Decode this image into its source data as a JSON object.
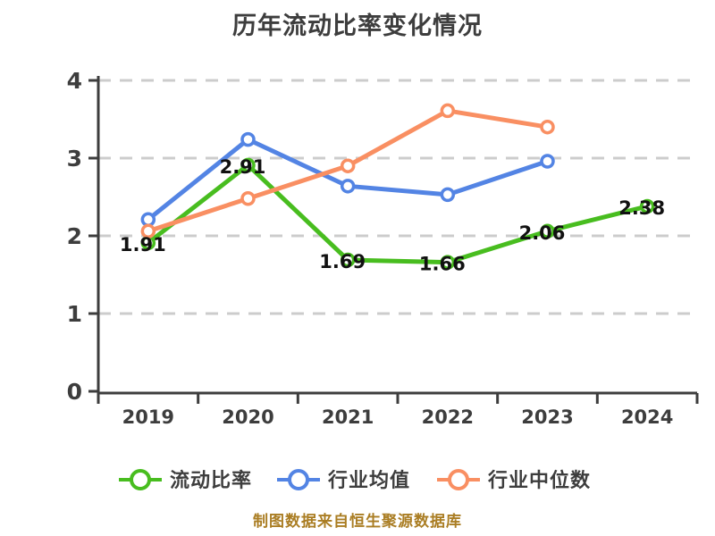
{
  "title": "历年流动比率变化情况",
  "footer": "制图数据来自恒生聚源数据库",
  "colors": {
    "background": "#ffffff",
    "title_text": "#3d3d3d",
    "axis": "#3d3d3d",
    "tick_label": "#3d3d3d",
    "grid": "#cccccc",
    "data_label": "#111111",
    "footer_text": "#aa7d23",
    "marker_fill": "#ffffff",
    "series_current_ratio": "#48bd1f",
    "series_industry_mean": "#5384e4",
    "series_industry_median": "#f98f62"
  },
  "legend": {
    "items": [
      {
        "label": "流动比率",
        "color": "#48bd1f"
      },
      {
        "label": "行业均值",
        "color": "#5384e4"
      },
      {
        "label": "行业中位数",
        "color": "#f98f62"
      }
    ]
  },
  "chart_data": {
    "type": "line",
    "title": "历年流动比率变化情况",
    "source_note": "制图数据来自恒生聚源数据库",
    "categories": [
      "2019",
      "2020",
      "2021",
      "2022",
      "2023",
      "2024"
    ],
    "xlabel": "",
    "ylabel": "",
    "ylim": [
      0,
      4
    ],
    "yticks": [
      0,
      1,
      2,
      3,
      4
    ],
    "grid": "horizontal-dashed",
    "legend_position": "bottom",
    "series": [
      {
        "name": "流动比率",
        "color": "#48bd1f",
        "values": [
          1.91,
          2.91,
          1.69,
          1.66,
          2.06,
          2.38
        ],
        "labels": [
          "1.91",
          "2.91",
          "1.69",
          "1.66",
          "2.06",
          "2.38"
        ],
        "show_labels": true
      },
      {
        "name": "行业均值",
        "color": "#5384e4",
        "values": [
          2.21,
          3.24,
          2.64,
          2.53,
          2.96,
          null
        ],
        "show_labels": false
      },
      {
        "name": "行业中位数",
        "color": "#f98f62",
        "values": [
          2.06,
          2.48,
          2.9,
          3.61,
          3.4,
          null
        ],
        "show_labels": false
      }
    ]
  }
}
